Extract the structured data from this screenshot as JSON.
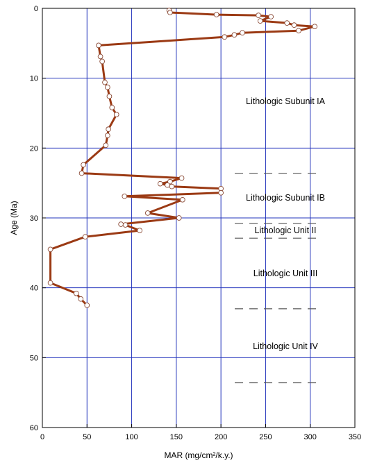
{
  "chart_data": {
    "type": "line",
    "xlabel": "MAR (mg/cm²/k.y.)",
    "ylabel": "Age (Ma)",
    "xlim": [
      0,
      350
    ],
    "ylim": [
      0,
      60
    ],
    "y_inverted": true,
    "grid": true,
    "x_ticks": [
      "0",
      "50",
      "100",
      "150",
      "200",
      "250",
      "300",
      "350"
    ],
    "y_ticks": [
      "0",
      "10",
      "20",
      "30",
      "40",
      "50",
      "60"
    ],
    "colors": {
      "line": "#9b3a14",
      "grid": "#2233bb",
      "marker_fill": "#ffffff",
      "boundary": "#555555"
    },
    "series": [
      {
        "points": [
          [
            142,
            0.3
          ],
          [
            143,
            0.6
          ],
          [
            195,
            0.9
          ],
          [
            242,
            1.0
          ],
          [
            256,
            1.2
          ],
          [
            244,
            1.8
          ],
          [
            274,
            2.1
          ],
          [
            282,
            2.4
          ],
          [
            305,
            2.6
          ],
          [
            287,
            3.2
          ],
          [
            224,
            3.5
          ],
          [
            215,
            3.8
          ],
          [
            204,
            4.1
          ],
          [
            63,
            5.3
          ],
          [
            65,
            6.9
          ],
          [
            67,
            7.6
          ],
          [
            70,
            10.6
          ],
          [
            73,
            11.3
          ],
          [
            75,
            12.6
          ],
          [
            78,
            14.2
          ],
          [
            83,
            15.2
          ],
          [
            74,
            17.3
          ],
          [
            73,
            18.2
          ],
          [
            71,
            19.6
          ],
          [
            46,
            22.4
          ],
          [
            44,
            23.6
          ],
          [
            156,
            24.3
          ],
          [
            143,
            24.8
          ],
          [
            132,
            25.1
          ],
          [
            140,
            25.3
          ],
          [
            145,
            25.5
          ],
          [
            200,
            25.8
          ],
          [
            200,
            26.4
          ],
          [
            92,
            26.9
          ],
          [
            157,
            27.4
          ],
          [
            118,
            29.3
          ],
          [
            153,
            30.0
          ],
          [
            88,
            30.9
          ],
          [
            93,
            31.0
          ],
          [
            109,
            31.8
          ],
          [
            48,
            32.7
          ],
          [
            9,
            34.5
          ],
          [
            9,
            39.3
          ],
          [
            38,
            40.8
          ],
          [
            43,
            41.6
          ],
          [
            50,
            42.5
          ]
        ]
      }
    ],
    "annotations": [
      "Lithologic Subunit IA",
      "Lithologic Subunit IB",
      "Lithologic Unit II",
      "Lithologic Unit III",
      "Lithologic Unit IV"
    ],
    "unit_boundaries": [
      23.6,
      30.8,
      32.9,
      43.0,
      53.6
    ]
  }
}
